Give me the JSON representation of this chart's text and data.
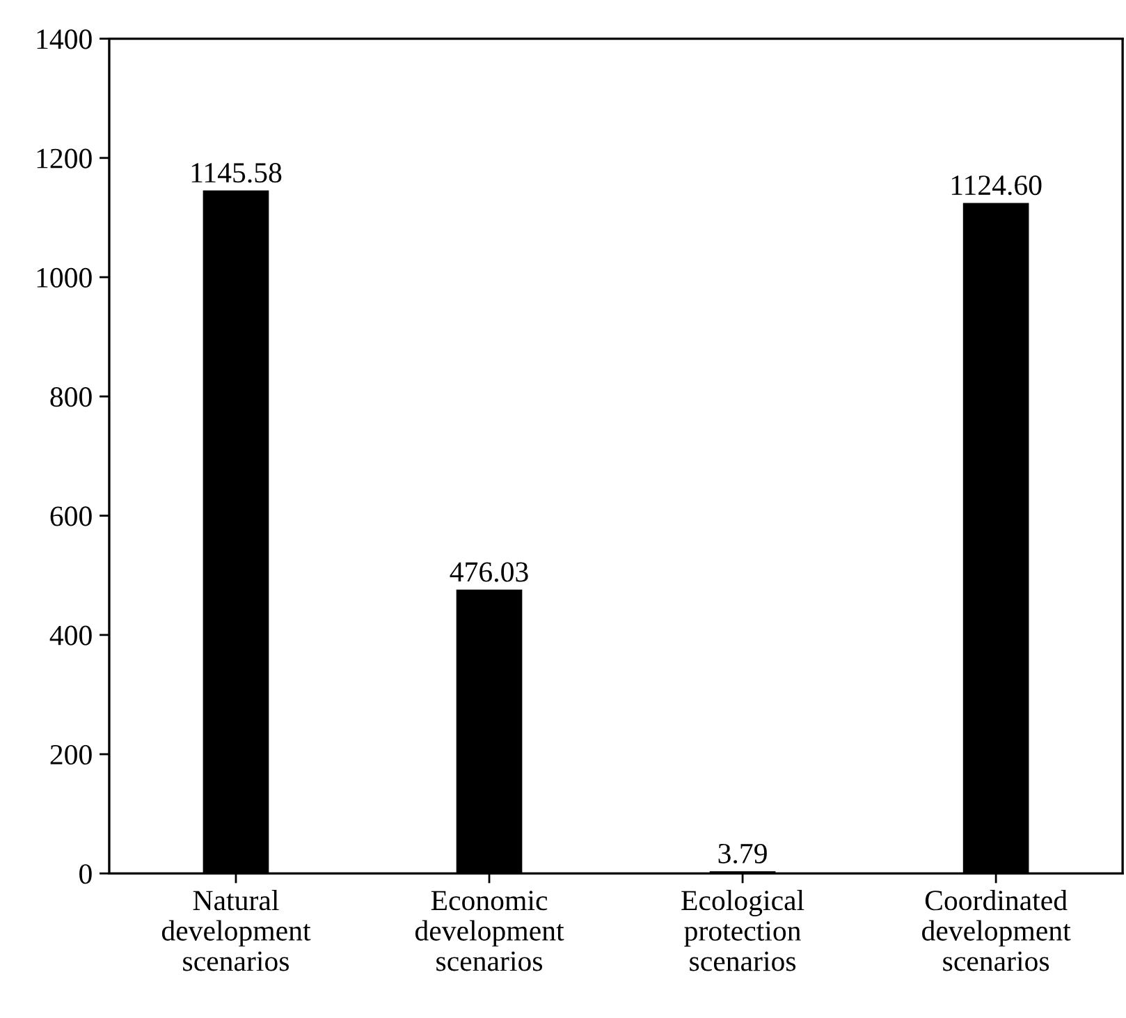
{
  "chart_data": {
    "type": "bar",
    "categories": [
      "Natural\ndevelopment\nscenarios",
      "Economic\ndevelopment\nscenarios",
      "Ecological\nprotection\nscenarios",
      "Coordinated\ndevelopment\nscenarios"
    ],
    "values": [
      1145.58,
      476.03,
      3.79,
      1124.6
    ],
    "value_labels": [
      "1145.58",
      "476.03",
      "3.79",
      "1124.60"
    ],
    "color": "#000000",
    "ylim": [
      0,
      1400
    ],
    "yticks": [
      0,
      200,
      400,
      600,
      800,
      1000,
      1200,
      1400
    ],
    "grid": false,
    "legend": false
  }
}
